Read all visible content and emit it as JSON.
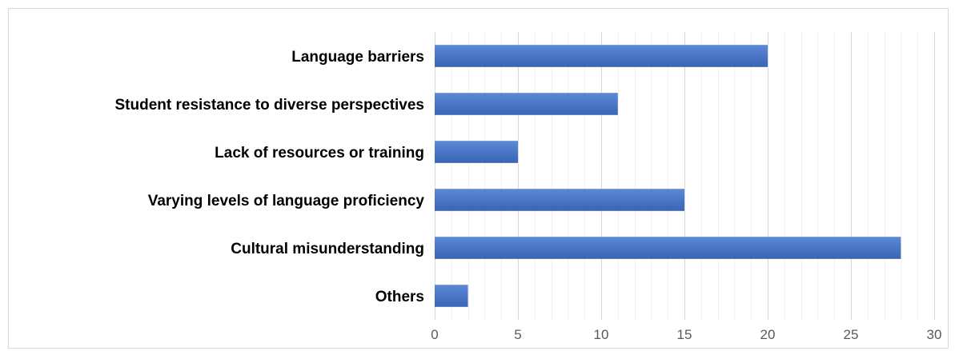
{
  "chart_data": {
    "type": "bar",
    "orientation": "horizontal",
    "categories": [
      "Language barriers",
      "Student resistance to diverse perspectives",
      "Lack of resources or training",
      "Varying levels of language proficiency",
      "Cultural misunderstanding",
      "Others"
    ],
    "values": [
      20,
      11,
      5,
      15,
      28,
      2
    ],
    "title": "",
    "xlabel": "",
    "ylabel": "",
    "xlim": [
      0,
      30
    ],
    "xticks": [
      "0",
      "5",
      "10",
      "15",
      "20",
      "25",
      "30"
    ],
    "minor_gridline_step": 1,
    "grid": true,
    "legend": "none",
    "colors": {
      "bar": "#4472c4",
      "bar_gradient_top": "#5b8ad6",
      "bar_gradient_bottom": "#3a63b4",
      "major_grid": "#d9d9d9",
      "minor_grid": "#f0f0f0"
    }
  }
}
